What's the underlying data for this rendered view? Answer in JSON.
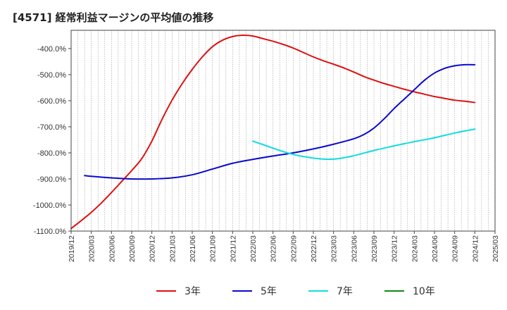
{
  "title": "[4571]  経常利益マージンの平均値の推移",
  "chart_data": {
    "type": "line",
    "ylim": [
      -1100,
      -330
    ],
    "y_ticks": [
      -400,
      -500,
      -600,
      -700,
      -800,
      -900,
      -1000,
      -1100
    ],
    "y_tick_labels": [
      "-400.0%",
      "-500.0%",
      "-600.0%",
      "-700.0%",
      "-800.0%",
      "-900.0%",
      "-1000.0%",
      "-1100.0%"
    ],
    "x_tick_labels": [
      "2019/12",
      "2020/03",
      "2020/06",
      "2020/09",
      "2020/12",
      "2021/03",
      "2021/06",
      "2021/09",
      "2021/12",
      "2022/03",
      "2022/06",
      "2022/09",
      "2022/12",
      "2023/03",
      "2023/06",
      "2023/09",
      "2023/12",
      "2024/03",
      "2024/06",
      "2024/09",
      "2024/12",
      "2025/03"
    ],
    "grid": true,
    "legend_position": "bottom",
    "series": [
      {
        "name": "3年",
        "color": "#dd1111",
        "x": [
          0,
          0.5,
          1,
          1.5,
          2,
          2.5,
          3,
          3.5,
          4,
          4.5,
          5,
          5.5,
          6,
          6.5,
          7,
          7.5,
          8,
          8.5,
          9,
          9.5,
          10,
          10.5,
          11,
          11.5,
          12,
          12.5,
          13,
          13.5,
          14,
          14.5,
          15,
          15.5,
          16,
          16.5,
          17,
          17.5,
          18,
          18.5,
          19,
          19.5,
          20
        ],
        "values": [
          -1090,
          -1060,
          -1028,
          -992,
          -952,
          -910,
          -868,
          -822,
          -755,
          -672,
          -598,
          -535,
          -480,
          -432,
          -393,
          -368,
          -354,
          -349,
          -352,
          -362,
          -372,
          -384,
          -398,
          -415,
          -432,
          -447,
          -460,
          -474,
          -490,
          -507,
          -521,
          -534,
          -545,
          -556,
          -566,
          -575,
          -584,
          -591,
          -598,
          -602,
          -607
        ]
      },
      {
        "name": "5年",
        "color": "#0a0acc",
        "x": [
          0.67,
          1,
          2,
          3,
          4,
          5,
          6,
          7,
          8,
          9,
          10,
          11,
          12,
          13,
          14,
          14.5,
          15,
          15.5,
          16,
          16.5,
          17,
          17.5,
          18,
          18.5,
          19,
          19.5,
          20
        ],
        "values": [
          -887,
          -890,
          -896,
          -900,
          -900,
          -896,
          -884,
          -862,
          -840,
          -825,
          -812,
          -800,
          -785,
          -767,
          -746,
          -730,
          -705,
          -670,
          -630,
          -594,
          -558,
          -522,
          -494,
          -476,
          -466,
          -462,
          -462
        ]
      },
      {
        "name": "7年",
        "color": "#11dddd",
        "x": [
          9,
          9.5,
          10,
          10.5,
          11,
          11.5,
          12,
          12.5,
          13,
          13.5,
          14,
          14.5,
          15,
          15.5,
          16,
          16.5,
          17,
          17.5,
          18,
          18.5,
          19,
          19.5,
          20
        ],
        "values": [
          -755,
          -768,
          -782,
          -795,
          -806,
          -814,
          -820,
          -824,
          -824,
          -819,
          -811,
          -801,
          -791,
          -782,
          -773,
          -765,
          -757,
          -750,
          -742,
          -733,
          -724,
          -716,
          -709
        ]
      },
      {
        "name": "10年",
        "color": "#118811",
        "x": [],
        "values": []
      }
    ]
  }
}
